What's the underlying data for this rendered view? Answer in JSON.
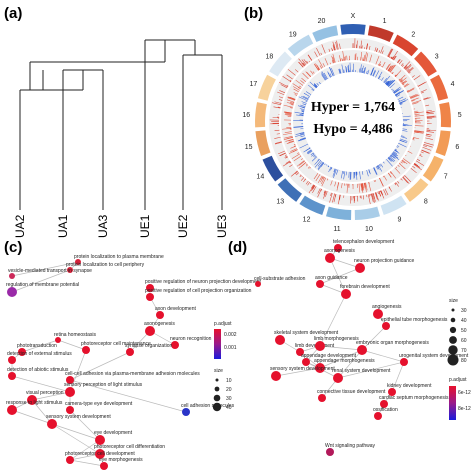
{
  "panels": {
    "a": {
      "label": "(a)",
      "leaves": [
        {
          "text": "UA2",
          "color": "#2e86c1"
        },
        {
          "text": "UA1",
          "color": "#2e86c1"
        },
        {
          "text": "UA3",
          "color": "#2e86c1"
        },
        {
          "text": "UE1",
          "color": "#f0b323"
        },
        {
          "text": "UE2",
          "color": "#f0b323"
        },
        {
          "text": "UE3",
          "color": "#f0b323"
        }
      ]
    },
    "b": {
      "label": "(b)",
      "hyper": "Hyper = 1,764",
      "hypo": "Hypo = 4,486",
      "chromosomes": [
        "X",
        "1",
        "2",
        "3",
        "4",
        "5",
        "6",
        "7",
        "8",
        "9",
        "10",
        "11",
        "12",
        "13",
        "14",
        "15",
        "16",
        "17",
        "18",
        "19",
        "20"
      ]
    },
    "c": {
      "label": "(c)",
      "legend_title": "p.adjust",
      "legend_ticks": [
        "0.002",
        "0.001"
      ],
      "size_title": "size",
      "size_values": [
        "10",
        "20",
        "30",
        "40"
      ],
      "nodes": [
        {
          "text": "protein localization to plasma membrane"
        },
        {
          "text": "protein localization to cell periphery"
        },
        {
          "text": "vesicle-mediated transport in synapse"
        },
        {
          "text": "regulation of membrane potential"
        },
        {
          "text": "positive regulation of neuron projection development"
        },
        {
          "text": "positive regulation of cell projection organization"
        },
        {
          "text": "axon development"
        },
        {
          "text": "axonogenesis"
        },
        {
          "text": "neuron recognition"
        },
        {
          "text": "synapse organization"
        },
        {
          "text": "retina homeostasis"
        },
        {
          "text": "phototransduction"
        },
        {
          "text": "photoreceptor cell maintenance"
        },
        {
          "text": "detection of external stimulus"
        },
        {
          "text": "detection of abiotic stimulus"
        },
        {
          "text": "cell-cell adhesion via plasma-membrane adhesion molecules"
        },
        {
          "text": "sensory perception of light stimulus"
        },
        {
          "text": "visual perception"
        },
        {
          "text": "response to light stimulus"
        },
        {
          "text": "camera-type eye development"
        },
        {
          "text": "cell adhesion molecules"
        },
        {
          "text": "sensory system development"
        },
        {
          "text": "eye development"
        },
        {
          "text": "photoreceptor cell differentiation"
        },
        {
          "text": "photoreceptor cell development"
        },
        {
          "text": "eye morphogenesis"
        }
      ]
    },
    "d": {
      "label": "(d)",
      "legend_title": "p.adjust",
      "legend_ticks": [
        "6e-12",
        "8e-12"
      ],
      "size_title": "size",
      "size_values": [
        "30",
        "40",
        "50",
        "60",
        "70",
        "80"
      ],
      "nodes": [
        {
          "text": "telencephalon development"
        },
        {
          "text": "axonogenesis"
        },
        {
          "text": "neuron projection guidance"
        },
        {
          "text": "axon guidance"
        },
        {
          "text": "forebrain development"
        },
        {
          "text": "cell-substrate adhesion"
        },
        {
          "text": "angiogenesis"
        },
        {
          "text": "epithelial tube morphogenesis"
        },
        {
          "text": "skeletal system development"
        },
        {
          "text": "limb development"
        },
        {
          "text": "limb morphogenesis"
        },
        {
          "text": "appendage development"
        },
        {
          "text": "appendage morphogenesis"
        },
        {
          "text": "embryonic organ morphogenesis"
        },
        {
          "text": "renal system development"
        },
        {
          "text": "urogenital system development"
        },
        {
          "text": "kidney development"
        },
        {
          "text": "connective tissue development"
        },
        {
          "text": "cardiac septum morphogenesis"
        },
        {
          "text": "ossification"
        },
        {
          "text": "sensory system development"
        },
        {
          "text": "Wnt signaling pathway"
        }
      ]
    }
  }
}
